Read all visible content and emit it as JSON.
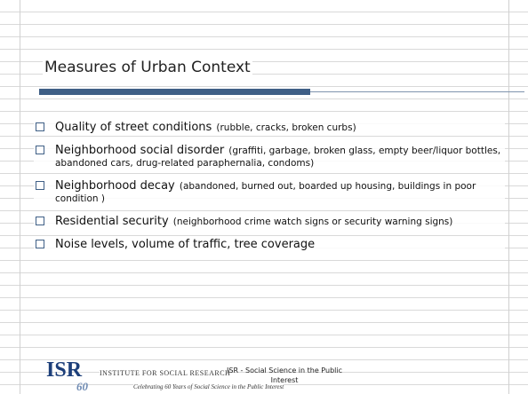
{
  "title": "Measures of Urban Context",
  "items": [
    {
      "main": "Quality of street conditions",
      "detail": "(rubble, cracks, broken curbs)"
    },
    {
      "main": "Neighborhood social disorder",
      "detail": "(graffiti, garbage, broken glass, empty beer/liquor bottles, abandoned cars, drug-related paraphernalia, condoms)"
    },
    {
      "main": "Neighborhood decay",
      "detail": "(abandoned, burned out, boarded up housing, buildings in poor condition )"
    },
    {
      "main": "Residential security",
      "detail": "(neighborhood crime watch signs or security warning signs)"
    },
    {
      "main": "Noise levels, volume of traffic, tree coverage",
      "detail": null
    }
  ],
  "footer": {
    "logo": "ISR",
    "logo_years": "60",
    "institute": "INSTITUTE FOR SOCIAL RESEARCH",
    "tagline": "Celebrating 60 Years of Social Science in the Public Interest",
    "caption": "ISR - Social Science in the Public Interest"
  }
}
